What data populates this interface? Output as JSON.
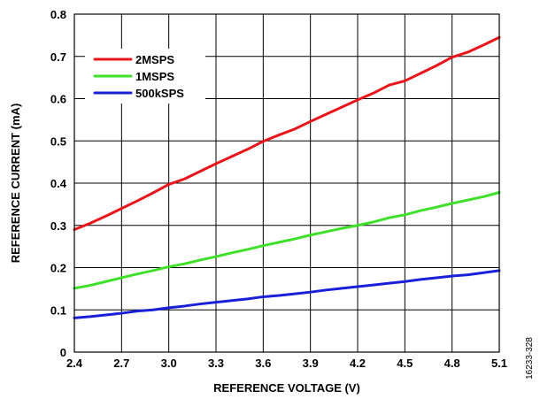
{
  "chart_data": {
    "type": "line",
    "title": "",
    "xlabel": "REFERENCE VOLTAGE (V)",
    "ylabel": "REFERENCE CURRENT (mA)",
    "xlim": [
      2.4,
      5.1
    ],
    "ylim": [
      0,
      0.8
    ],
    "x_ticks": [
      "2.4",
      "2.7",
      "3.0",
      "3.3",
      "3.6",
      "3.9",
      "4.2",
      "4.5",
      "4.8",
      "5.1"
    ],
    "y_ticks": [
      "0",
      "0.1",
      "0.2",
      "0.3",
      "0.4",
      "0.5",
      "0.6",
      "0.7",
      "0.8"
    ],
    "grid": true,
    "legend_position": "top-left",
    "x": [
      2.4,
      2.5,
      2.6,
      2.7,
      2.8,
      2.9,
      3.0,
      3.1,
      3.2,
      3.3,
      3.4,
      3.5,
      3.6,
      3.7,
      3.8,
      3.9,
      4.0,
      4.1,
      4.2,
      4.3,
      4.4,
      4.5,
      4.6,
      4.7,
      4.8,
      4.9,
      5.0,
      5.1
    ],
    "series": [
      {
        "name": "2MSPS",
        "color": "#e8151b",
        "values": [
          0.29,
          0.305,
          0.322,
          0.34,
          0.358,
          0.377,
          0.397,
          0.41,
          0.428,
          0.446,
          0.463,
          0.48,
          0.499,
          0.514,
          0.528,
          0.546,
          0.563,
          0.58,
          0.597,
          0.613,
          0.632,
          0.642,
          0.66,
          0.678,
          0.698,
          0.71,
          0.727,
          0.745
        ]
      },
      {
        "name": "1MSPS",
        "color": "#3ee02a",
        "values": [
          0.151,
          0.158,
          0.167,
          0.176,
          0.185,
          0.193,
          0.202,
          0.209,
          0.218,
          0.226,
          0.235,
          0.243,
          0.252,
          0.26,
          0.268,
          0.277,
          0.285,
          0.293,
          0.3,
          0.308,
          0.318,
          0.325,
          0.335,
          0.343,
          0.352,
          0.36,
          0.368,
          0.378
        ]
      },
      {
        "name": "500kSPS",
        "color": "#1a20d8",
        "values": [
          0.081,
          0.084,
          0.088,
          0.092,
          0.097,
          0.1,
          0.105,
          0.109,
          0.114,
          0.118,
          0.122,
          0.126,
          0.131,
          0.134,
          0.138,
          0.142,
          0.147,
          0.151,
          0.155,
          0.159,
          0.163,
          0.167,
          0.172,
          0.176,
          0.18,
          0.183,
          0.188,
          0.193
        ]
      }
    ]
  },
  "figure_id": "16233-328"
}
